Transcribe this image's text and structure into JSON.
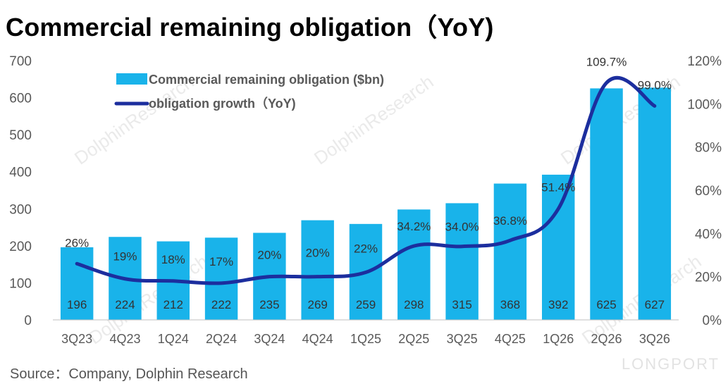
{
  "title": "Commercial remaining obligation（YoY)",
  "source": "Source：Company, Dolphin Research",
  "watermark_text": "DolphinResearch",
  "brand": "LONGPORT",
  "colors": {
    "bar": "#19B3EA",
    "line": "#1C2E9E",
    "axis_text": "#595959",
    "gridline": "#D9D9D9"
  },
  "chart_data": {
    "type": "bar",
    "categories": [
      "3Q23",
      "4Q23",
      "1Q24",
      "2Q24",
      "3Q24",
      "4Q24",
      "1Q25",
      "2Q25",
      "3Q25",
      "4Q25",
      "1Q26",
      "2Q26",
      "3Q26"
    ],
    "series": [
      {
        "name": "Commercial remaining obligation ($bn)",
        "type": "bar",
        "axis": "left",
        "values": [
          196,
          224,
          212,
          222,
          235,
          269,
          259,
          298,
          315,
          368,
          392,
          625,
          627
        ],
        "labels": [
          "196",
          "224",
          "212",
          "222",
          "235",
          "269",
          "259",
          "298",
          "315",
          "368",
          "392",
          "625",
          "627"
        ]
      },
      {
        "name": "obligation growth（YoY)",
        "type": "line",
        "axis": "right",
        "values": [
          26,
          19,
          18,
          17,
          20,
          20,
          22,
          34.2,
          34.0,
          36.8,
          51.4,
          109.7,
          99.0
        ],
        "labels": [
          "26%",
          "19%",
          "18%",
          "17%",
          "20%",
          "20%",
          "22%",
          "34.2%",
          "34.0%",
          "36.8%",
          "51.4%",
          "109.7%",
          "99.0%"
        ]
      }
    ],
    "y_left": {
      "min": 0,
      "max": 700,
      "ticks": [
        "0",
        "100",
        "200",
        "300",
        "400",
        "500",
        "600",
        "700"
      ]
    },
    "y_right": {
      "min": 0,
      "max": 120,
      "ticks": [
        "0%",
        "20%",
        "40%",
        "60%",
        "80%",
        "100%",
        "120%"
      ]
    },
    "grid": false,
    "legend_position": "top-left"
  }
}
